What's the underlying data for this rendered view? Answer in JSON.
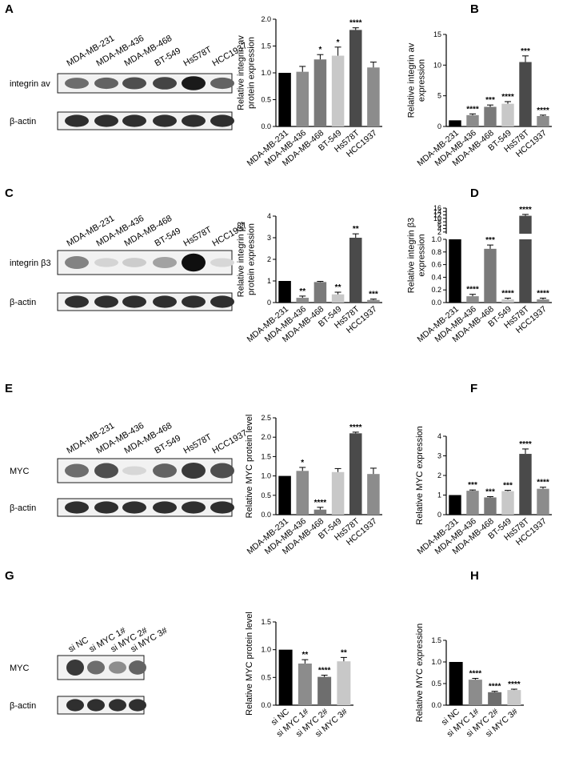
{
  "panels": [
    {
      "id": "A",
      "label": "A",
      "blot": {
        "lanes": [
          "MDA-MB-231",
          "MDA-MB-436",
          "MDA-MB-468",
          "BT-549",
          "Hs578T",
          "HCC1937"
        ],
        "rows": [
          {
            "protein": "integrin av",
            "intensities": [
              0.55,
              0.6,
              0.7,
              0.75,
              0.95,
              0.6
            ]
          },
          {
            "protein": "β-actin",
            "intensities": [
              0.85,
              0.85,
              0.85,
              0.85,
              0.85,
              0.85
            ]
          }
        ]
      }
    },
    {
      "id": "B",
      "label": "B"
    },
    {
      "id": "C",
      "label": "C",
      "blot": {
        "lanes": [
          "MDA-MB-231",
          "MDA-MB-436",
          "MDA-MB-468",
          "BT-549",
          "Hs578T",
          "HCC1937"
        ],
        "rows": [
          {
            "protein": "integrin β3",
            "intensities": [
              0.45,
              0.06,
              0.1,
              0.3,
              1.0,
              0.05
            ]
          },
          {
            "protein": "β-actin",
            "intensities": [
              0.85,
              0.85,
              0.85,
              0.85,
              0.85,
              0.85
            ]
          }
        ]
      }
    },
    {
      "id": "D",
      "label": "D"
    },
    {
      "id": "E",
      "label": "E",
      "blot": {
        "lanes": [
          "MDA-MB-231",
          "MDA-MB-436",
          "MDA-MB-468",
          "BT-549",
          "Hs578T",
          "HCC1937"
        ],
        "rows": [
          {
            "protein": "MYC",
            "intensities": [
              0.55,
              0.7,
              0.05,
              0.6,
              0.8,
              0.7
            ]
          },
          {
            "protein": "β-actin",
            "intensities": [
              0.85,
              0.85,
              0.85,
              0.85,
              0.85,
              0.85
            ]
          }
        ]
      }
    },
    {
      "id": "F",
      "label": "F"
    },
    {
      "id": "G",
      "label": "G",
      "blot": {
        "lanes": [
          "si NC",
          "si MYC 1#",
          "si MYC 2#",
          "si MYC 3#"
        ],
        "rows": [
          {
            "protein": "MYC",
            "intensities": [
              0.8,
              0.55,
              0.4,
              0.6
            ]
          },
          {
            "protein": "β-actin",
            "intensities": [
              0.85,
              0.85,
              0.85,
              0.85
            ]
          }
        ]
      }
    },
    {
      "id": "H",
      "label": "H"
    }
  ],
  "chart_data": [
    {
      "id": "A-bar",
      "type": "bar",
      "ylabel": "Relative integrin av\nprotein expression",
      "ylim": [
        0,
        2.0
      ],
      "yticks": [
        0,
        0.5,
        1.0,
        1.5,
        2.0
      ],
      "categories": [
        "MDA-MB-231",
        "MDA-MB-436",
        "MDA-MB-468",
        "BT-549",
        "Hs578T",
        "HCC1937"
      ],
      "values": [
        1.0,
        1.02,
        1.25,
        1.32,
        1.8,
        1.1
      ],
      "errors": [
        0,
        0.1,
        0.09,
        0.16,
        0.04,
        0.1
      ],
      "significance": [
        "",
        "",
        "*",
        "*",
        "****",
        ""
      ],
      "colors": [
        "#000000",
        "#8c8c8c",
        "#7a7a7a",
        "#c8c8c8",
        "#4a4a4a",
        "#8c8c8c"
      ]
    },
    {
      "id": "B-bar",
      "type": "bar",
      "ylabel": "Relative integrin av\nexpression",
      "ylim": [
        0,
        15
      ],
      "yticks": [
        0,
        5,
        10,
        15
      ],
      "categories": [
        "MDA-MB-231",
        "MDA-MB-436",
        "MDA-MB-468",
        "BT-549",
        "Hs578T",
        "HCC1937"
      ],
      "values": [
        1.0,
        1.85,
        3.2,
        3.7,
        10.5,
        1.7
      ],
      "errors": [
        0,
        0.2,
        0.3,
        0.35,
        1.0,
        0.15
      ],
      "significance": [
        "",
        "****",
        "***",
        "****",
        "***",
        "****"
      ],
      "colors": [
        "#000000",
        "#8c8c8c",
        "#7a7a7a",
        "#c8c8c8",
        "#4a4a4a",
        "#8c8c8c"
      ]
    },
    {
      "id": "C-bar",
      "type": "bar",
      "ylabel": "Relative integrin  β3\nprotein expression",
      "ylim": [
        0,
        4
      ],
      "yticks": [
        0,
        1,
        2,
        3,
        4
      ],
      "categories": [
        "MDA-MB-231",
        "MDA-MB-436",
        "MDA-MB-468",
        "BT-549",
        "Hs578T",
        "HCC1937"
      ],
      "values": [
        1.0,
        0.22,
        0.95,
        0.38,
        3.0,
        0.12
      ],
      "errors": [
        0,
        0.08,
        0.03,
        0.1,
        0.18,
        0.04
      ],
      "significance": [
        "",
        "**",
        "",
        "**",
        "**",
        "***"
      ],
      "colors": [
        "#000000",
        "#8c8c8c",
        "#7a7a7a",
        "#c8c8c8",
        "#4a4a4a",
        "#8c8c8c"
      ]
    },
    {
      "id": "D-bar",
      "type": "bar-broken",
      "ylabel": "Relative integrin β3\nexpression",
      "lower_ylim": [
        0,
        1.0
      ],
      "lower_yticks": [
        0.0,
        0.2,
        0.4,
        0.6,
        0.8,
        1.0
      ],
      "upper_ylim": [
        1.0,
        16
      ],
      "upper_yticks": [
        2,
        4,
        6,
        8,
        10,
        12,
        14,
        16
      ],
      "categories": [
        "MDA-MB-231",
        "MDA-MB-436",
        "MDA-MB-468",
        "BT-549",
        "Hs578T",
        "HCC1937"
      ],
      "values": [
        1.0,
        0.1,
        0.85,
        0.05,
        11.5,
        0.05
      ],
      "errors": [
        0,
        0.03,
        0.06,
        0.02,
        0.8,
        0.02
      ],
      "significance": [
        "",
        "****",
        "***",
        "****",
        "****",
        "****"
      ],
      "colors": [
        "#000000",
        "#8c8c8c",
        "#7a7a7a",
        "#c8c8c8",
        "#4a4a4a",
        "#8c8c8c"
      ]
    },
    {
      "id": "E-bar",
      "type": "bar",
      "ylabel": "Relative MYC protein level",
      "ylim": [
        0,
        2.5
      ],
      "yticks": [
        0,
        0.5,
        1.0,
        1.5,
        2.0,
        2.5
      ],
      "categories": [
        "MDA-MB-231",
        "MDA-MB-436",
        "MDA-MB-468",
        "BT-549",
        "Hs578T",
        "HCC1937"
      ],
      "values": [
        1.0,
        1.13,
        0.13,
        1.1,
        2.1,
        1.05
      ],
      "errors": [
        0,
        0.09,
        0.06,
        0.09,
        0.03,
        0.15
      ],
      "significance": [
        "",
        "*",
        "****",
        "",
        "****",
        ""
      ],
      "colors": [
        "#000000",
        "#8c8c8c",
        "#7a7a7a",
        "#c8c8c8",
        "#4a4a4a",
        "#8c8c8c"
      ]
    },
    {
      "id": "F-bar",
      "type": "bar",
      "ylabel": "Relative MYC expression",
      "ylim": [
        0,
        4
      ],
      "yticks": [
        0,
        1,
        2,
        3,
        4
      ],
      "categories": [
        "MDA-MB-231",
        "MDA-MB-436",
        "MDA-MB-468",
        "BT-549",
        "Hs578T",
        "HCC1937"
      ],
      "values": [
        1.0,
        1.22,
        0.88,
        1.2,
        3.1,
        1.32
      ],
      "errors": [
        0,
        0.04,
        0.04,
        0.04,
        0.25,
        0.08
      ],
      "significance": [
        "",
        "***",
        "***",
        "***",
        "****",
        "****"
      ],
      "colors": [
        "#000000",
        "#8c8c8c",
        "#7a7a7a",
        "#c8c8c8",
        "#4a4a4a",
        "#8c8c8c"
      ]
    },
    {
      "id": "G-bar",
      "type": "bar",
      "ylabel": "Relative MYC protein level",
      "ylim": [
        0,
        1.5
      ],
      "yticks": [
        0.0,
        0.5,
        1.0,
        1.5
      ],
      "categories": [
        "si NC",
        "si MYC 1#",
        "si MYC 2#",
        "si MYC 3#"
      ],
      "values": [
        1.0,
        0.75,
        0.51,
        0.79
      ],
      "errors": [
        0,
        0.07,
        0.03,
        0.07
      ],
      "significance": [
        "",
        "**",
        "****",
        "**"
      ],
      "colors": [
        "#000000",
        "#8c8c8c",
        "#6e6e6e",
        "#c8c8c8"
      ]
    },
    {
      "id": "H-bar",
      "type": "bar",
      "ylabel": "Relative MYC expression",
      "ylim": [
        0,
        1.5
      ],
      "yticks": [
        0.0,
        0.5,
        1.0,
        1.5
      ],
      "categories": [
        "si NC",
        "si MYC 1#",
        "si MYC 2#",
        "si MYC 3#"
      ],
      "values": [
        1.0,
        0.59,
        0.3,
        0.35
      ],
      "errors": [
        0,
        0.03,
        0.02,
        0.02
      ],
      "significance": [
        "",
        "****",
        "****",
        "****"
      ],
      "colors": [
        "#000000",
        "#8c8c8c",
        "#6e6e6e",
        "#c8c8c8"
      ]
    }
  ]
}
